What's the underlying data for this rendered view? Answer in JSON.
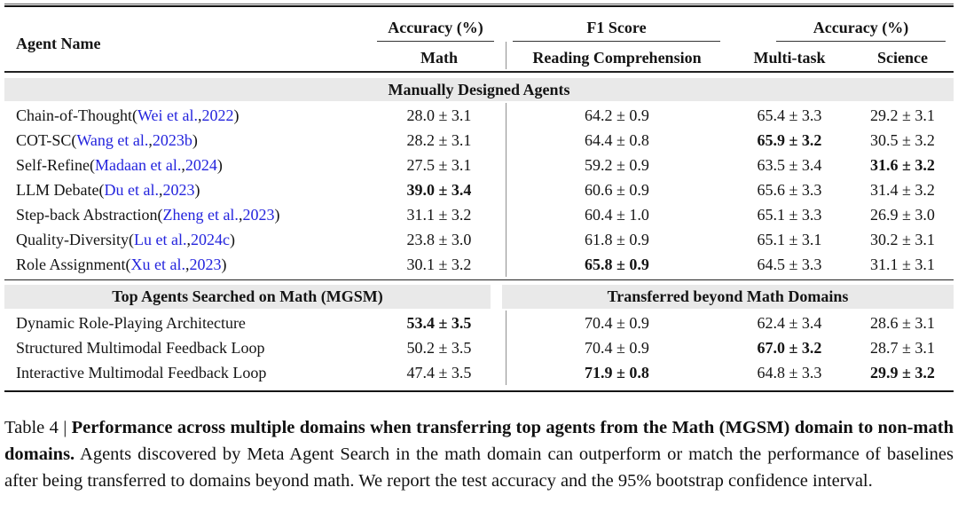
{
  "colors": {
    "link": "#2424dd",
    "band": "#e9e9e9",
    "divider": "#8f8f8f",
    "text": "#141414"
  },
  "table": {
    "header": {
      "agent_name": "Agent Name",
      "groups": [
        {
          "label": "Accuracy (%)",
          "subs": [
            "Math"
          ]
        },
        {
          "label": "F1 Score",
          "subs": [
            "Reading Comprehension"
          ]
        },
        {
          "label": "Accuracy (%)",
          "subs": [
            "Multi-task",
            "Science"
          ]
        }
      ]
    },
    "sections": [
      {
        "band": {
          "style": "full",
          "label": "Manually Designed Agents"
        },
        "rows": [
          {
            "agent": "Chain-of-Thought",
            "citation": {
              "open": " (",
              "name": "Wei et al.",
              "sep": ", ",
              "year": "2022",
              "close": ")"
            },
            "cells": [
              {
                "text": "28.0 ± 3.1",
                "bold": false
              },
              {
                "text": "64.2 ± 0.9",
                "bold": false
              },
              {
                "text": "65.4 ± 3.3",
                "bold": false
              },
              {
                "text": "29.2 ± 3.1",
                "bold": false
              }
            ]
          },
          {
            "agent": "COT-SC",
            "citation": {
              "open": " (",
              "name": "Wang et al.",
              "sep": ", ",
              "year": "2023b",
              "close": ")"
            },
            "cells": [
              {
                "text": "28.2 ± 3.1",
                "bold": false
              },
              {
                "text": "64.4 ± 0.8",
                "bold": false
              },
              {
                "text": "65.9 ± 3.2",
                "bold": true
              },
              {
                "text": "30.5 ± 3.2",
                "bold": false
              }
            ]
          },
          {
            "agent": "Self-Refine",
            "citation": {
              "open": " (",
              "name": "Madaan et al.",
              "sep": ", ",
              "year": "2024",
              "close": ")"
            },
            "cells": [
              {
                "text": "27.5 ± 3.1",
                "bold": false
              },
              {
                "text": "59.2 ± 0.9",
                "bold": false
              },
              {
                "text": "63.5 ± 3.4",
                "bold": false
              },
              {
                "text": "31.6 ± 3.2",
                "bold": true
              }
            ]
          },
          {
            "agent": "LLM Debate",
            "citation": {
              "open": " (",
              "name": "Du et al.",
              "sep": ", ",
              "year": "2023",
              "close": ")"
            },
            "cells": [
              {
                "text": "39.0 ± 3.4",
                "bold": true
              },
              {
                "text": "60.6 ± 0.9",
                "bold": false
              },
              {
                "text": "65.6 ± 3.3",
                "bold": false
              },
              {
                "text": "31.4 ± 3.2",
                "bold": false
              }
            ]
          },
          {
            "agent": "Step-back Abstraction",
            "citation": {
              "open": " (",
              "name": "Zheng et al.",
              "sep": ", ",
              "year": "2023",
              "close": ")"
            },
            "cells": [
              {
                "text": "31.1 ± 3.2",
                "bold": false
              },
              {
                "text": "60.4 ± 1.0",
                "bold": false
              },
              {
                "text": "65.1 ± 3.3",
                "bold": false
              },
              {
                "text": "26.9 ± 3.0",
                "bold": false
              }
            ]
          },
          {
            "agent": "Quality-Diversity",
            "citation": {
              "open": " (",
              "name": "Lu et al.",
              "sep": ", ",
              "year": "2024c",
              "close": ")"
            },
            "cells": [
              {
                "text": "23.8 ± 3.0",
                "bold": false
              },
              {
                "text": "61.8 ± 0.9",
                "bold": false
              },
              {
                "text": "65.1 ± 3.1",
                "bold": false
              },
              {
                "text": "30.2 ± 3.1",
                "bold": false
              }
            ]
          },
          {
            "agent": "Role Assignment",
            "citation": {
              "open": " (",
              "name": "Xu et al.",
              "sep": ", ",
              "year": "2023",
              "close": ")"
            },
            "cells": [
              {
                "text": "30.1 ± 3.2",
                "bold": false
              },
              {
                "text": "65.8 ± 0.9",
                "bold": true
              },
              {
                "text": "64.5 ± 3.3",
                "bold": false
              },
              {
                "text": "31.1 ± 3.1",
                "bold": false
              }
            ]
          }
        ]
      },
      {
        "band": {
          "style": "split",
          "left": "Top Agents Searched on Math (MGSM)",
          "right": "Transferred beyond Math Domains"
        },
        "rows": [
          {
            "agent": "Dynamic Role-Playing Architecture",
            "citation": null,
            "cells": [
              {
                "text": "53.4 ± 3.5",
                "bold": true
              },
              {
                "text": "70.4 ± 0.9",
                "bold": false
              },
              {
                "text": "62.4 ± 3.4",
                "bold": false
              },
              {
                "text": "28.6 ± 3.1",
                "bold": false
              }
            ]
          },
          {
            "agent": "Structured Multimodal Feedback Loop",
            "citation": null,
            "cells": [
              {
                "text": "50.2 ± 3.5",
                "bold": false
              },
              {
                "text": "70.4 ± 0.9",
                "bold": false
              },
              {
                "text": "67.0 ± 3.2",
                "bold": true
              },
              {
                "text": "28.7 ± 3.1",
                "bold": false
              }
            ]
          },
          {
            "agent": "Interactive Multimodal Feedback Loop",
            "citation": null,
            "cells": [
              {
                "text": "47.4 ± 3.5",
                "bold": false
              },
              {
                "text": "71.9 ± 0.8",
                "bold": true
              },
              {
                "text": "64.8 ± 3.3",
                "bold": false
              },
              {
                "text": "29.9 ± 3.2",
                "bold": true
              }
            ]
          }
        ]
      }
    ]
  },
  "caption": {
    "prefix": "Table 4 | ",
    "bold": "Performance across multiple domains when transferring top agents from the Math (MGSM) domain to non-math domains.",
    "rest": " Agents discovered by Meta Agent Search in the math domain can outperform or match the performance of baselines after being transferred to domains beyond math. We report the test accuracy and the 95% bootstrap confidence interval."
  }
}
